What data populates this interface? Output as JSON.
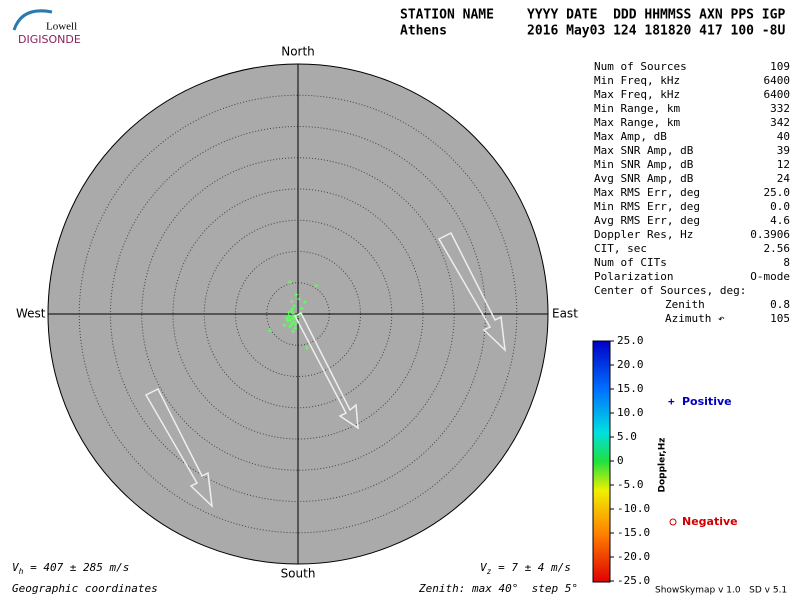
{
  "header": {
    "logo_top": "Lowell",
    "logo_bottom": "DIGISONDE",
    "label_station": "STATION NAME",
    "label_fields": "YYYY DATE  DDD HHMMSS AXN PPS IGP",
    "station": "Athens",
    "fields": "2016 May03 124 181820 417 100 -8U"
  },
  "compass": {
    "north": "North",
    "south": "South",
    "east": "East",
    "west": "West"
  },
  "stats": [
    [
      "Num of Sources",
      "109"
    ],
    [
      "Min Freq, kHz",
      "6400"
    ],
    [
      "Max Freq, kHz",
      "6400"
    ],
    [
      "Min Range, km",
      "332"
    ],
    [
      "Max Range, km",
      "342"
    ],
    [
      "Max Amp, dB",
      "40"
    ],
    [
      "Max SNR Amp, dB",
      "39"
    ],
    [
      "Min SNR Amp, dB",
      "12"
    ],
    [
      "Avg SNR Amp, dB",
      "24"
    ],
    [
      "Max RMS Err, deg",
      "25.0"
    ],
    [
      "Min RMS Err, deg",
      "0.0"
    ],
    [
      "Avg RMS Err, deg",
      "4.6"
    ],
    [
      "Doppler Res, Hz",
      "0.3906"
    ],
    [
      "CIT, sec",
      "2.56"
    ],
    [
      "Num of CITs",
      "8"
    ],
    [
      "Polarization",
      "O-mode"
    ]
  ],
  "center": {
    "title": "Center of Sources, deg:",
    "zenith_label": "Zenith",
    "zenith": "0.8",
    "azimuth_label": "Azimuth ↶",
    "azimuth": "105"
  },
  "colorbar": {
    "title": "Doppler,Hz",
    "ticks": [
      {
        "value": 25,
        "label": "25.0"
      },
      {
        "value": 20,
        "label": "20.0"
      },
      {
        "value": 15,
        "label": "15.0"
      },
      {
        "value": 10,
        "label": "10.0"
      },
      {
        "value": 5,
        "label": "5.0"
      },
      0,
      {
        "value": -5,
        "label": "-5.0"
      },
      {
        "value": -10,
        "label": "-10.0"
      },
      {
        "value": -15,
        "label": "-15.0"
      },
      {
        "value": -20,
        "label": "-20.0"
      },
      {
        "value": -25,
        "label": "-25.0"
      }
    ]
  },
  "legend": {
    "positive": "Positive",
    "negative": "Negative"
  },
  "footer": {
    "vh_symbol": "V",
    "vh_sub": "h",
    "vh_text": " = 407 ± 285 m/s",
    "vz_symbol": "V",
    "vz_sub": "z",
    "vz_text": " = 7 ± 4 m/s",
    "coords": "Geographic coordinates",
    "zenith": "Zenith: max 40°  step 5°",
    "version": "ShowSkymap v 1.0   SD v 5.1"
  },
  "skymap": {
    "zenith_max": 40,
    "zenith_step": 5,
    "points": [
      [
        -0.9,
        -0.7
      ],
      [
        -0.5,
        -0.3
      ],
      [
        -1.2,
        -1.0
      ],
      [
        -0.7,
        -1.3
      ],
      [
        -0.3,
        -0.9
      ],
      [
        -1.4,
        -0.4
      ],
      [
        -0.8,
        0.1
      ],
      [
        -1.0,
        -1.6
      ],
      [
        -0.2,
        -0.5
      ],
      [
        -1.6,
        -1.1
      ],
      [
        -0.6,
        -0.6
      ],
      [
        -1.1,
        0.4
      ],
      [
        -0.4,
        -1.7
      ],
      [
        -1.3,
        -2.0
      ],
      [
        -0.1,
        -1.2
      ],
      [
        -0.9,
        0.8
      ],
      [
        -1.5,
        0.2
      ],
      [
        -0.6,
        1.3
      ],
      [
        -1.0,
        2.0
      ],
      [
        -0.5,
        -2.3
      ],
      [
        0.3,
        -0.2
      ],
      [
        -1.8,
        -0.7
      ],
      [
        2.9,
        4.5
      ],
      [
        1.4,
        -5.4
      ],
      [
        -4.5,
        -2.6
      ],
      [
        -1.3,
        5.1
      ],
      [
        1.1,
        1.9
      ],
      [
        -0.3,
        3.1
      ],
      [
        0.6,
        0.9
      ],
      [
        -2.2,
        -1.8
      ],
      [
        -0.8,
        -2.8
      ],
      [
        0.2,
        2.4
      ]
    ]
  }
}
